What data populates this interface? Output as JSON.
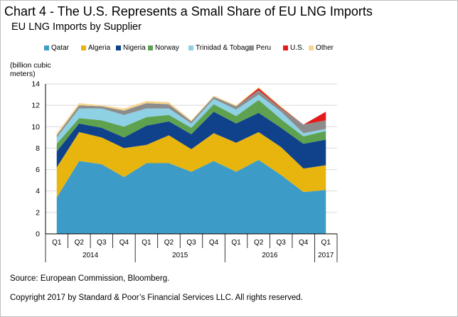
{
  "header": {
    "title": "Chart 4 - The U.S. Represents a Small Share of EU LNG Imports",
    "subtitle": "EU LNG Imports by Supplier"
  },
  "footer": {
    "source": "Source: European Commission, Bloomberg.",
    "copyright": "Copyright 2017 by Standard & Poor’s Financial Services LLC. All rights reserved."
  },
  "chart_data": {
    "type": "area",
    "stacked": true,
    "title": "Chart 4 - The U.S. Represents a Small Share of EU LNG Imports",
    "subtitle": "EU LNG Imports by Supplier",
    "ylabel": "(billion cubic meters)",
    "ylim": [
      0,
      14
    ],
    "yticks": [
      0,
      2,
      4,
      6,
      8,
      10,
      12,
      14
    ],
    "grid": "horizontal",
    "legend_position": "top",
    "categories": [
      "Q1",
      "Q2",
      "Q3",
      "Q4",
      "Q1",
      "Q2",
      "Q3",
      "Q4",
      "Q1",
      "Q2",
      "Q3",
      "Q4",
      "Q1"
    ],
    "year_groups": [
      {
        "label": "2014",
        "start": 0,
        "end": 3
      },
      {
        "label": "2015",
        "start": 4,
        "end": 7
      },
      {
        "label": "2016",
        "start": 8,
        "end": 11
      },
      {
        "label": "2017",
        "start": 12,
        "end": 12
      }
    ],
    "series": [
      {
        "name": "Qatar",
        "color": "#3d9cc7",
        "values": [
          3.4,
          6.8,
          6.5,
          5.3,
          6.6,
          6.6,
          5.8,
          6.8,
          5.8,
          6.9,
          5.5,
          3.9,
          4.1
        ]
      },
      {
        "name": "Algeria",
        "color": "#e8b50f",
        "values": [
          2.8,
          2.7,
          2.5,
          2.7,
          1.7,
          2.6,
          2.1,
          2.6,
          2.7,
          2.6,
          2.6,
          2.2,
          2.3
        ]
      },
      {
        "name": "Nigeria",
        "color": "#10428c",
        "values": [
          1.5,
          0.8,
          0.9,
          1.0,
          1.8,
          1.3,
          1.4,
          2.0,
          1.8,
          1.8,
          1.8,
          2.3,
          2.4
        ]
      },
      {
        "name": "Norway",
        "color": "#5ea14f",
        "values": [
          0.7,
          0.5,
          0.7,
          1.0,
          0.8,
          0.6,
          0.6,
          0.7,
          0.7,
          1.2,
          0.8,
          0.7,
          0.8
        ]
      },
      {
        "name": "Trinidad & Tobago",
        "color": "#8ed0e4",
        "values": [
          0.6,
          0.9,
          1.1,
          1.1,
          0.8,
          0.6,
          0.4,
          0.5,
          0.6,
          0.5,
          0.7,
          0.3,
          0.2
        ]
      },
      {
        "name": "Peru",
        "color": "#8c8c8c",
        "values": [
          0.2,
          0.3,
          0.2,
          0.4,
          0.5,
          0.4,
          0.2,
          0.2,
          0.3,
          0.4,
          0.3,
          0.8,
          0.8
        ]
      },
      {
        "name": "U.S.",
        "color": "#e41a1c",
        "values": [
          0,
          0,
          0,
          0,
          0,
          0,
          0,
          0,
          0,
          0.2,
          0.1,
          0,
          0.8
        ]
      },
      {
        "name": "Other",
        "color": "#f7d58e",
        "values": [
          0.2,
          0.2,
          0.1,
          0.2,
          0.2,
          0.2,
          0.1,
          0.1,
          0.1,
          0.1,
          0.1,
          0,
          0
        ]
      }
    ]
  }
}
